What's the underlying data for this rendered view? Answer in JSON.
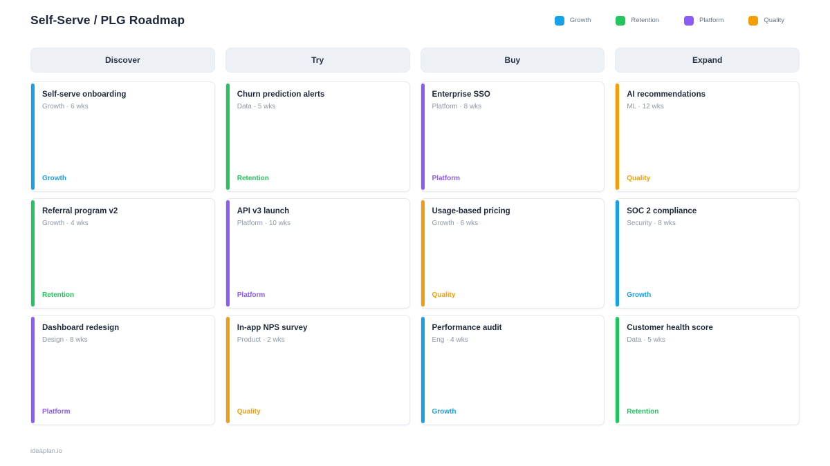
{
  "page": {
    "title": "Self-Serve / PLG Roadmap",
    "footer": "ideaplan.io"
  },
  "legend": [
    {
      "label": "Growth",
      "color": "#17a2e8"
    },
    {
      "label": "Retention",
      "color": "#22c55e"
    },
    {
      "label": "Platform",
      "color": "#8b5cf6"
    },
    {
      "label": "Quality",
      "color": "#f59e0b"
    }
  ],
  "columns": [
    {
      "header": "Discover",
      "cards": [
        {
          "title": "Self-serve onboarding",
          "meta": "Growth · 6 wks",
          "tag": "Growth",
          "color": "#17a2e8"
        },
        {
          "title": "Referral program v2",
          "meta": "Growth · 4 wks",
          "tag": "Retention",
          "color": "#22c55e"
        },
        {
          "title": "Dashboard redesign",
          "meta": "Design · 8 wks",
          "tag": "Platform",
          "color": "#8b5cf6"
        }
      ]
    },
    {
      "header": "Try",
      "cards": [
        {
          "title": "Churn prediction alerts",
          "meta": "Data · 5 wks",
          "tag": "Retention",
          "color": "#22c55e"
        },
        {
          "title": "API v3 launch",
          "meta": "Platform · 10 wks",
          "tag": "Platform",
          "color": "#8b5cf6"
        },
        {
          "title": "In-app NPS survey",
          "meta": "Product · 2 wks",
          "tag": "Quality",
          "color": "#f59e0b"
        }
      ]
    },
    {
      "header": "Buy",
      "cards": [
        {
          "title": "Enterprise SSO",
          "meta": "Platform · 8 wks",
          "tag": "Platform",
          "color": "#8b5cf6"
        },
        {
          "title": "Usage-based pricing",
          "meta": "Growth · 6 wks",
          "tag": "Quality",
          "color": "#f59e0b"
        },
        {
          "title": "Performance audit",
          "meta": "Eng · 4 wks",
          "tag": "Growth",
          "color": "#17a2e8"
        }
      ]
    },
    {
      "header": "Expand",
      "cards": [
        {
          "title": "AI recommendations",
          "meta": "ML · 12 wks",
          "tag": "Quality",
          "color": "#f59e0b"
        },
        {
          "title": "SOC 2 compliance",
          "meta": "Security · 8 wks",
          "tag": "Growth",
          "color": "#17a2e8"
        },
        {
          "title": "Customer health score",
          "meta": "Data · 5 wks",
          "tag": "Retention",
          "color": "#22c55e"
        }
      ]
    }
  ]
}
